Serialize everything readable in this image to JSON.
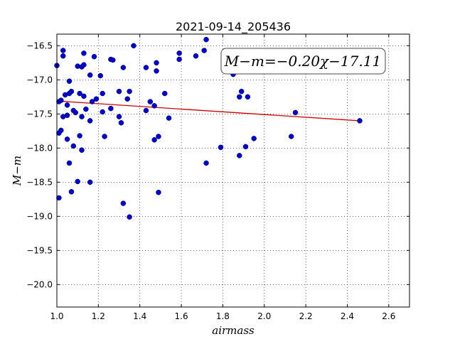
{
  "chart_data": {
    "type": "scatter",
    "title": "2021-09-14_205436",
    "xlabel": "airmass",
    "ylabel": "M−m",
    "xlim": [
      1.0,
      2.7
    ],
    "ylim": [
      -20.33,
      -16.33
    ],
    "y_inverted": true,
    "grid": true,
    "x_ticks": [
      1.0,
      1.2,
      1.4,
      1.6,
      1.8,
      2.0,
      2.2,
      2.4,
      2.6
    ],
    "x_tick_labels": [
      "1.0",
      "1.2",
      "1.4",
      "1.6",
      "1.8",
      "2.0",
      "2.2",
      "2.4",
      "2.6"
    ],
    "y_ticks": [
      -16.5,
      -17.0,
      -17.5,
      -18.0,
      -18.5,
      -19.0,
      -19.5,
      -20.0
    ],
    "y_tick_labels": [
      "−16.5",
      "−17.0",
      "−17.5",
      "−18.0",
      "−18.5",
      "−19.0",
      "−19.5",
      "−20.0"
    ],
    "annotation": "M−m=−0.20χ−17.11",
    "marker_color": "#0000cc",
    "fit_color": "#cc0000",
    "fit_line": {
      "x": [
        1.0,
        2.46
      ],
      "y": [
        -17.31,
        -17.6
      ]
    },
    "points": [
      [
        1.0,
        -16.79
      ],
      [
        1.01,
        -17.78
      ],
      [
        1.01,
        -18.73
      ],
      [
        1.01,
        -17.32
      ],
      [
        1.02,
        -17.3
      ],
      [
        1.02,
        -17.74
      ],
      [
        1.03,
        -16.57
      ],
      [
        1.03,
        -16.65
      ],
      [
        1.03,
        -17.54
      ],
      [
        1.04,
        -17.22
      ],
      [
        1.05,
        -17.37
      ],
      [
        1.05,
        -17.52
      ],
      [
        1.05,
        -17.87
      ],
      [
        1.06,
        -17.02
      ],
      [
        1.06,
        -17.2
      ],
      [
        1.06,
        -18.22
      ],
      [
        1.07,
        -17.17
      ],
      [
        1.07,
        -18.64
      ],
      [
        1.08,
        -17.45
      ],
      [
        1.08,
        -17.97
      ],
      [
        1.09,
        -17.48
      ],
      [
        1.1,
        -16.8
      ],
      [
        1.1,
        -18.49
      ],
      [
        1.11,
        -17.2
      ],
      [
        1.11,
        -17.82
      ],
      [
        1.12,
        -16.81
      ],
      [
        1.12,
        -17.54
      ],
      [
        1.12,
        -18.03
      ],
      [
        1.13,
        -16.61
      ],
      [
        1.13,
        -16.78
      ],
      [
        1.13,
        -17.24
      ],
      [
        1.14,
        -17.43
      ],
      [
        1.16,
        -16.93
      ],
      [
        1.16,
        -17.6
      ],
      [
        1.16,
        -18.5
      ],
      [
        1.17,
        -17.32
      ],
      [
        1.18,
        -16.66
      ],
      [
        1.19,
        -17.28
      ],
      [
        1.21,
        -16.94
      ],
      [
        1.22,
        -17.2
      ],
      [
        1.22,
        -17.47
      ],
      [
        1.23,
        -17.83
      ],
      [
        1.26,
        -16.7
      ],
      [
        1.26,
        -17.42
      ],
      [
        1.27,
        -16.71
      ],
      [
        1.3,
        -17.17
      ],
      [
        1.3,
        -17.54
      ],
      [
        1.31,
        -17.63
      ],
      [
        1.32,
        -16.82
      ],
      [
        1.32,
        -18.81
      ],
      [
        1.34,
        -17.28
      ],
      [
        1.35,
        -17.17
      ],
      [
        1.35,
        -19.01
      ],
      [
        1.37,
        -16.5
      ],
      [
        1.43,
        -16.82
      ],
      [
        1.43,
        -17.45
      ],
      [
        1.45,
        -17.32
      ],
      [
        1.47,
        -17.38
      ],
      [
        1.47,
        -17.88
      ],
      [
        1.48,
        -16.75
      ],
      [
        1.48,
        -16.87
      ],
      [
        1.49,
        -17.83
      ],
      [
        1.49,
        -18.65
      ],
      [
        1.52,
        -17.2
      ],
      [
        1.54,
        -17.56
      ],
      [
        1.59,
        -16.61
      ],
      [
        1.59,
        -16.7
      ],
      [
        1.67,
        -16.65
      ],
      [
        1.71,
        -16.57
      ],
      [
        1.72,
        -16.41
      ],
      [
        1.72,
        -18.22
      ],
      [
        1.79,
        -17.99
      ],
      [
        1.85,
        -16.92
      ],
      [
        1.88,
        -17.25
      ],
      [
        1.88,
        -18.11
      ],
      [
        1.89,
        -17.17
      ],
      [
        1.91,
        -17.98
      ],
      [
        1.92,
        -17.25
      ],
      [
        1.95,
        -17.86
      ],
      [
        2.13,
        -17.83
      ],
      [
        2.15,
        -17.48
      ],
      [
        2.46,
        -17.6
      ]
    ]
  }
}
